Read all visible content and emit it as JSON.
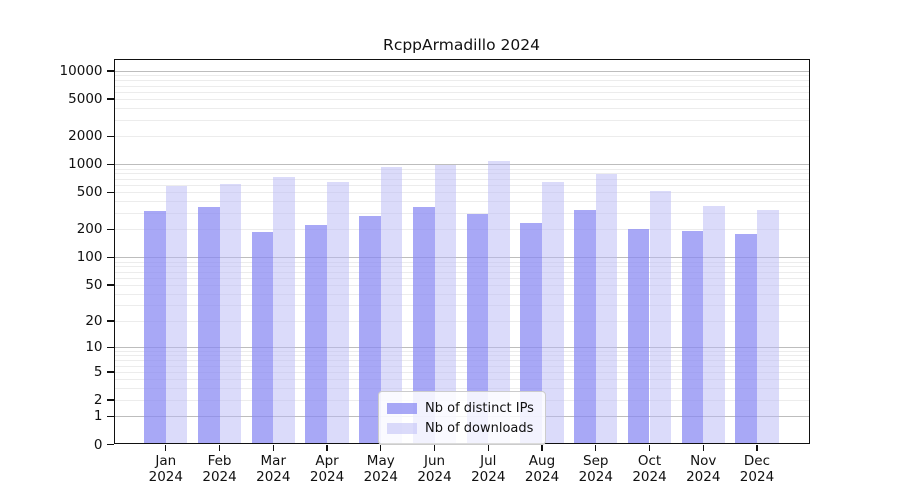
{
  "chart_data": {
    "type": "bar",
    "title": "RcppArmadillo 2024",
    "categories": [
      "Jan",
      "Feb",
      "Mar",
      "Apr",
      "May",
      "Jun",
      "Jul",
      "Aug",
      "Sep",
      "Oct",
      "Nov",
      "Dec"
    ],
    "category_year": "2024",
    "series": [
      {
        "name": "Nb of distinct IPs",
        "values": [
          320,
          348,
          187,
          226,
          276,
          350,
          294,
          235,
          328,
          200,
          193,
          180
        ]
      },
      {
        "name": "Nb of downloads",
        "values": [
          592,
          622,
          727,
          643,
          938,
          978,
          1079,
          643,
          789,
          515,
          355,
          325
        ]
      }
    ],
    "yscale": "log1p",
    "ytick_values": [
      0,
      1,
      2,
      5,
      10,
      20,
      50,
      100,
      200,
      500,
      1000,
      2000,
      5000,
      10000
    ],
    "ytick_labels": [
      "0",
      "1",
      "2",
      "5",
      "10",
      "20",
      "50",
      "100",
      "200",
      "500",
      "1000",
      "2000",
      "5000",
      "10000"
    ],
    "ylim": [
      0,
      12900
    ],
    "xlabel": "",
    "ylabel": "",
    "grid": "horizontal, major lines at powers of 10, minor lines at 2-9 per decade",
    "legend_position": "inside lower-center"
  },
  "colors": {
    "ips_bar": "rgba(134,134,243,0.72)",
    "downloads_bar": "rgba(183,183,246,0.50)",
    "major_grid": "#bdbdbd",
    "minor_grid": "#ececec",
    "axis": "#111111"
  }
}
